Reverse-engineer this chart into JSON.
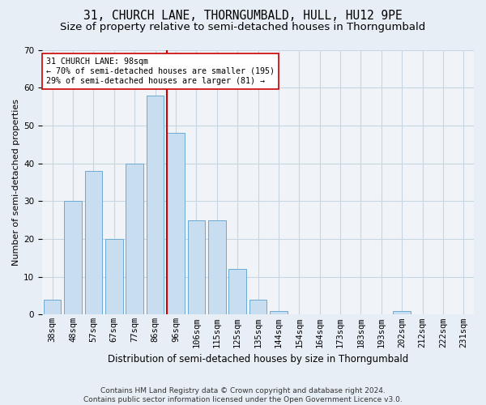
{
  "title1": "31, CHURCH LANE, THORNGUMBALD, HULL, HU12 9PE",
  "title2": "Size of property relative to semi-detached houses in Thorngumbald",
  "xlabel": "Distribution of semi-detached houses by size in Thorngumbald",
  "ylabel": "Number of semi-detached properties",
  "categories": [
    "38sqm",
    "48sqm",
    "57sqm",
    "67sqm",
    "77sqm",
    "86sqm",
    "96sqm",
    "106sqm",
    "115sqm",
    "125sqm",
    "135sqm",
    "144sqm",
    "154sqm",
    "164sqm",
    "173sqm",
    "183sqm",
    "193sqm",
    "202sqm",
    "212sqm",
    "222sqm",
    "231sqm"
  ],
  "values": [
    4,
    30,
    38,
    20,
    40,
    58,
    48,
    25,
    25,
    12,
    4,
    1,
    0,
    0,
    0,
    0,
    0,
    1,
    0,
    0,
    0
  ],
  "bar_color": "#c9ddf0",
  "bar_edge_color": "#6aaad4",
  "property_label": "31 CHURCH LANE: 98sqm",
  "annotation_line1": "← 70% of semi-detached houses are smaller (195)",
  "annotation_line2": "29% of semi-detached houses are larger (81) →",
  "vline_x_index": 6,
  "vline_color": "#cc0000",
  "annotation_box_color": "#ffffff",
  "annotation_box_edge": "#cc0000",
  "ylim": [
    0,
    70
  ],
  "yticks": [
    0,
    10,
    20,
    30,
    40,
    50,
    60,
    70
  ],
  "footnote": "Contains HM Land Registry data © Crown copyright and database right 2024.\nContains public sector information licensed under the Open Government Licence v3.0.",
  "bg_color": "#e8eef5",
  "plot_bg_color": "#f0f4f9",
  "grid_color": "#c8d4e0",
  "title1_fontsize": 10.5,
  "title2_fontsize": 9.5,
  "xlabel_fontsize": 8.5,
  "ylabel_fontsize": 8,
  "tick_fontsize": 7.5,
  "footnote_fontsize": 6.5
}
